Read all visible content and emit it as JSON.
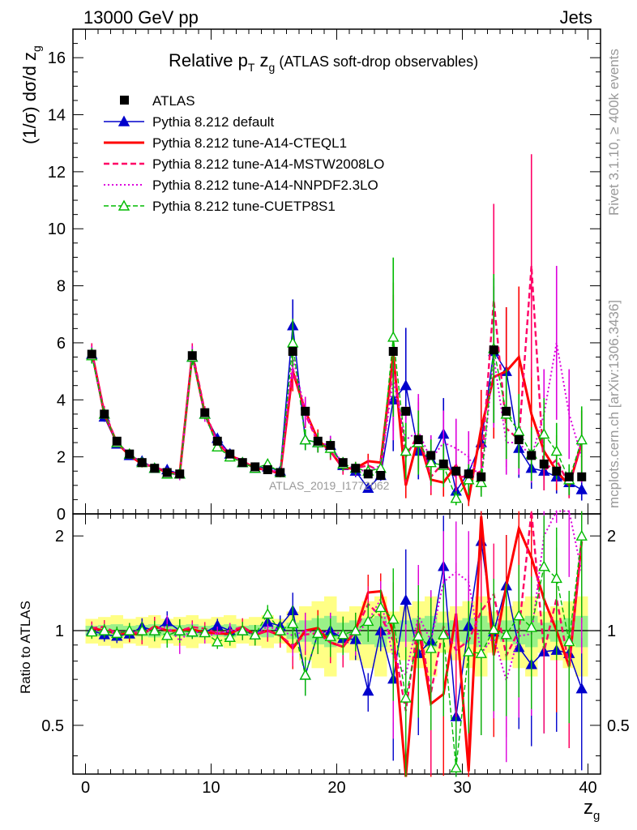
{
  "header": {
    "left": "13000 GeV pp",
    "right": "Jets"
  },
  "side": {
    "rivet": "Rivet 3.1.10, ≥ 400k events",
    "mcplots": "mcplots.cern.ch [arXiv:1306.3436]"
  },
  "chart_data": {
    "type": "scatter",
    "title_prefix": "Relative p",
    "title_sub": "T",
    "title_mid": " z",
    "title_sub2": "g",
    "title_suffix": " (ATLAS soft-drop observables)",
    "watermark": "ATLAS_2019_I1772062",
    "xlabel": "z",
    "xlabel_sub": "g",
    "ylabel_main": "(1/σ) dσ/d z",
    "ylabel_main_sub": "g",
    "ylabel_ratio": "Ratio to ATLAS",
    "xlim": [
      -1,
      41
    ],
    "ylim_main": [
      0,
      17
    ],
    "ylim_ratio": [
      0.35,
      2.35
    ],
    "x_ticks": [
      "0",
      "10",
      "20",
      "30",
      "40"
    ],
    "y_ticks_main": [
      "0",
      "2",
      "4",
      "6",
      "8",
      "10",
      "12",
      "14",
      "16"
    ],
    "y_ticks_ratio": [
      "0.5",
      "1",
      "2"
    ],
    "x": [
      0.5,
      1.5,
      2.5,
      3.5,
      4.5,
      5.5,
      6.5,
      7.5,
      8.5,
      9.5,
      10.5,
      11.5,
      12.5,
      13.5,
      14.5,
      15.5,
      16.5,
      17.5,
      18.5,
      19.5,
      20.5,
      21.5,
      22.5,
      23.5,
      24.5,
      25.5,
      26.5,
      27.5,
      28.5,
      29.5,
      30.5,
      31.5,
      32.5,
      33.5,
      34.5,
      35.5,
      36.5,
      37.5,
      38.5,
      39.5
    ],
    "atlas": [
      5.6,
      3.5,
      2.55,
      2.1,
      1.8,
      1.6,
      1.45,
      1.4,
      5.55,
      3.55,
      2.55,
      2.1,
      1.8,
      1.65,
      1.55,
      1.45,
      5.7,
      3.6,
      2.55,
      2.4,
      1.8,
      1.6,
      1.4,
      1.35,
      5.7,
      3.6,
      2.6,
      2.05,
      1.75,
      1.5,
      1.4,
      1.3,
      5.75,
      3.6,
      2.6,
      2.05,
      1.75,
      1.5,
      1.3,
      1.3
    ],
    "legend": [
      {
        "name": "ATLAS",
        "color": "#000000"
      },
      {
        "name": "Pythia 8.212 default",
        "color": "#0000cc"
      },
      {
        "name": "Pythia 8.212 tune-A14-CTEQL1",
        "color": "#ff0000"
      },
      {
        "name": "Pythia 8.212 tune-A14-MSTW2008LO",
        "color": "#ff0066"
      },
      {
        "name": "Pythia 8.212 tune-A14-NNPDF2.3LO",
        "color": "#dd00dd"
      },
      {
        "name": "Pythia 8.212 tune-CUETP8S1",
        "color": "#00bb00"
      }
    ],
    "series": [
      {
        "name": "Pythia 8.212 default",
        "color": "#0000cc",
        "values": [
          5.6,
          3.4,
          2.45,
          2.05,
          1.85,
          1.6,
          1.55,
          1.4,
          5.5,
          3.5,
          2.65,
          2.1,
          1.8,
          1.6,
          1.65,
          1.5,
          6.6,
          2.6,
          2.5,
          2.4,
          1.7,
          1.5,
          0.9,
          1.35,
          4.0,
          4.5,
          2.2,
          1.9,
          2.8,
          0.8,
          1.45,
          2.5,
          5.7,
          5.0,
          2.3,
          1.6,
          1.5,
          1.3,
          1.1,
          0.85
        ]
      },
      {
        "name": "Pythia 8.212 tune-A14-CTEQL1",
        "color": "#ff0000",
        "values": [
          5.7,
          3.5,
          2.5,
          2.05,
          1.75,
          1.65,
          1.45,
          1.4,
          5.6,
          3.5,
          2.5,
          2.05,
          1.85,
          1.6,
          1.55,
          1.4,
          5.0,
          3.6,
          2.6,
          2.2,
          1.6,
          1.6,
          1.85,
          1.8,
          5.6,
          1.0,
          2.7,
          1.2,
          1.1,
          1.7,
          0.5,
          3.0,
          4.8,
          5.0,
          5.5,
          3.5,
          2.2,
          1.5,
          1.0,
          2.5
        ]
      },
      {
        "name": "Pythia 8.212 tune-A14-MSTW2008LO",
        "color": "#ff0066",
        "values": [
          5.7,
          3.6,
          2.5,
          2.1,
          1.75,
          1.65,
          1.45,
          1.4,
          5.7,
          3.6,
          2.5,
          2.1,
          1.85,
          1.6,
          1.55,
          1.4,
          5.1,
          3.5,
          2.5,
          2.2,
          1.6,
          1.6,
          1.7,
          1.5,
          5.3,
          2.0,
          2.8,
          1.3,
          1.8,
          1.3,
          1.3,
          1.5,
          7.5,
          3.0,
          2.6,
          8.7,
          1.5,
          1.9,
          1.0,
          2.5
        ]
      },
      {
        "name": "Pythia 8.212 tune-A14-NNPDF2.3LO",
        "color": "#dd00dd",
        "values": [
          5.6,
          3.5,
          2.5,
          2.1,
          1.8,
          1.6,
          1.5,
          1.3,
          5.6,
          3.4,
          2.5,
          2.1,
          1.8,
          1.6,
          1.6,
          1.45,
          5.5,
          3.6,
          2.5,
          2.4,
          1.75,
          1.55,
          1.5,
          1.7,
          4.7,
          2.6,
          2.9,
          1.9,
          2.5,
          2.3,
          2.0,
          1.1,
          5.5,
          2.5,
          2.5,
          2.0,
          3.5,
          6.0,
          3.5,
          2.0
        ]
      },
      {
        "name": "Pythia 8.212 tune-CUETP8S1",
        "color": "#00bb00",
        "values": [
          5.55,
          3.5,
          2.5,
          2.1,
          1.8,
          1.6,
          1.4,
          1.4,
          5.5,
          3.5,
          2.35,
          2.0,
          1.8,
          1.6,
          1.75,
          1.45,
          6.0,
          2.6,
          2.5,
          2.3,
          1.75,
          1.6,
          1.5,
          1.6,
          6.2,
          2.2,
          2.5,
          1.8,
          1.7,
          0.55,
          1.2,
          1.1,
          5.8,
          3.5,
          2.9,
          2.1,
          2.8,
          2.2,
          1.2,
          2.6
        ]
      }
    ]
  }
}
